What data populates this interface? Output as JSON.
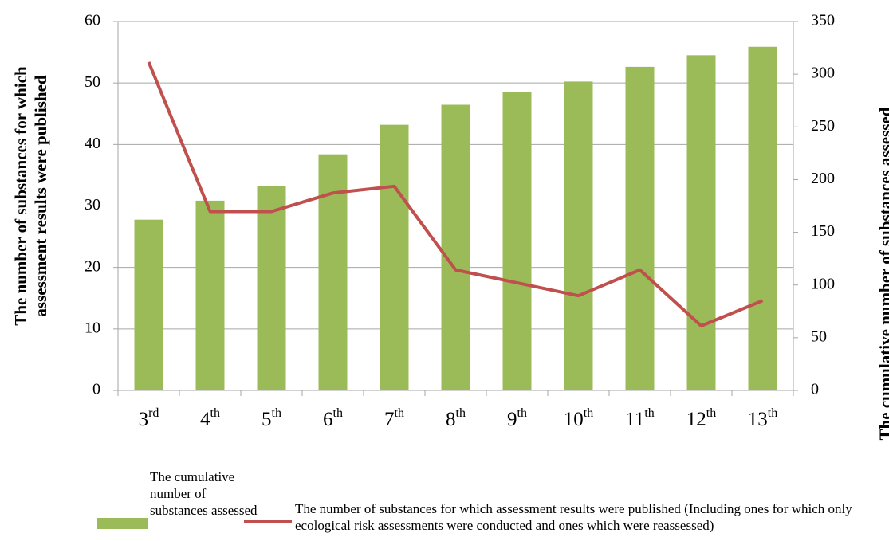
{
  "chart_data": {
    "type": "bar-line",
    "categories": [
      "3rd",
      "4th",
      "5th",
      "6th",
      "7th",
      "8th",
      "9th",
      "10th",
      "11th",
      "12th",
      "13th"
    ],
    "ylabel": "The number of substances for which assessment results were published",
    "y2label": "The cumulative number  of substances assessed",
    "ylim": [
      0,
      60
    ],
    "yticks": [
      0,
      10,
      20,
      30,
      40,
      50,
      60
    ],
    "y2lim": [
      0,
      350
    ],
    "y2ticks": [
      0,
      50,
      100,
      150,
      200,
      250,
      300,
      350
    ],
    "grid": true,
    "series": [
      {
        "name": "The cumulative number of substances assessed",
        "type": "bar",
        "axis": "y2",
        "color": "#9bbb59",
        "values": [
          162,
          180,
          194,
          224,
          252,
          271,
          283,
          293,
          307,
          318,
          326
        ]
      },
      {
        "name": "The number of substances for which assessment results were published (Including ones for which only ecological risk assessments were conducted and ones which were reassessed)",
        "type": "line",
        "color": "#c0504d",
        "values": [
          53.4,
          29.1,
          29.1,
          32.1,
          33.2,
          19.6,
          17.5,
          15.4,
          19.6,
          10.5,
          14.6
        ]
      }
    ]
  }
}
